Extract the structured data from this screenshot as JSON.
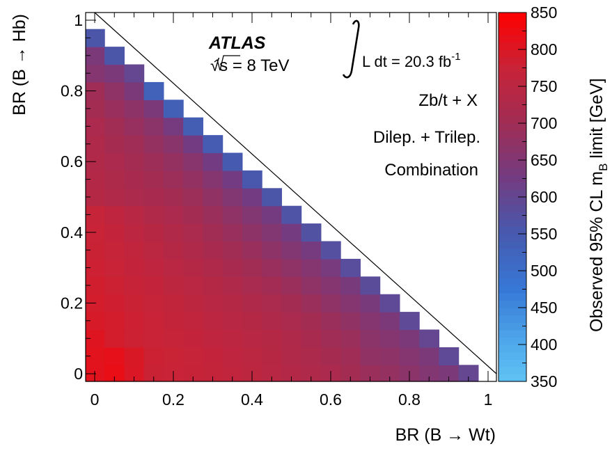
{
  "chart_data": {
    "type": "heatmap",
    "x": {
      "label": "BR (B → Wt)",
      "range": [
        0,
        1
      ],
      "ticks": [
        "0",
        "0.2",
        "0.4",
        "0.6",
        "0.8",
        "1"
      ],
      "tick_values": [
        0,
        0.2,
        0.4,
        0.6,
        0.8,
        1
      ]
    },
    "y": {
      "label": "BR (B → Hb)",
      "range": [
        0,
        1
      ],
      "ticks": [
        "0",
        "0.2",
        "0.4",
        "0.6",
        "0.8",
        "1"
      ],
      "tick_values": [
        0,
        0.2,
        0.4,
        0.6,
        0.8,
        1
      ]
    },
    "z": {
      "label": "Observed 95% CL m_B limit [GeV]",
      "label_main": "Observed 95% CL m",
      "label_sub": "B",
      "label_tail": " limit [GeV]",
      "range": [
        350,
        850
      ],
      "ticks": [
        "350",
        "400",
        "450",
        "500",
        "550",
        "600",
        "650",
        "700",
        "750",
        "800",
        "850"
      ],
      "tick_values": [
        350,
        400,
        450,
        500,
        550,
        600,
        650,
        700,
        750,
        800,
        850
      ]
    },
    "grid_step": 0.05,
    "constraint": "BR(Wt) + BR(Hb) ≤ 1",
    "cells": [
      [
        0,
        0,
        810
      ],
      [
        0.05,
        0,
        820
      ],
      [
        0.1,
        0,
        800
      ],
      [
        0.15,
        0,
        778
      ],
      [
        0.2,
        0,
        775
      ],
      [
        0.25,
        0,
        772
      ],
      [
        0.3,
        0,
        768
      ],
      [
        0.35,
        0,
        760
      ],
      [
        0.4,
        0,
        755
      ],
      [
        0.45,
        0,
        745
      ],
      [
        0.5,
        0,
        735
      ],
      [
        0.55,
        0,
        728
      ],
      [
        0.6,
        0,
        720
      ],
      [
        0.65,
        0,
        705
      ],
      [
        0.7,
        0,
        690
      ],
      [
        0.75,
        0,
        680
      ],
      [
        0.8,
        0,
        665
      ],
      [
        0.85,
        0,
        650
      ],
      [
        0.9,
        0,
        640
      ],
      [
        0.95,
        0,
        600
      ],
      [
        0,
        0.05,
        810
      ],
      [
        0.05,
        0.05,
        815
      ],
      [
        0.1,
        0.05,
        798
      ],
      [
        0.15,
        0.05,
        780
      ],
      [
        0.2,
        0.05,
        776
      ],
      [
        0.25,
        0.05,
        770
      ],
      [
        0.3,
        0.05,
        765
      ],
      [
        0.35,
        0.05,
        758
      ],
      [
        0.4,
        0.05,
        750
      ],
      [
        0.45,
        0.05,
        742
      ],
      [
        0.5,
        0.05,
        732
      ],
      [
        0.55,
        0.05,
        722
      ],
      [
        0.6,
        0.05,
        712
      ],
      [
        0.65,
        0.05,
        698
      ],
      [
        0.7,
        0.05,
        675
      ],
      [
        0.75,
        0.05,
        670
      ],
      [
        0.8,
        0.05,
        655
      ],
      [
        0.85,
        0.05,
        640
      ],
      [
        0.9,
        0.05,
        590
      ],
      [
        0,
        0.1,
        805
      ],
      [
        0.05,
        0.1,
        790
      ],
      [
        0.1,
        0.1,
        780
      ],
      [
        0.15,
        0.1,
        775
      ],
      [
        0.2,
        0.1,
        770
      ],
      [
        0.25,
        0.1,
        765
      ],
      [
        0.3,
        0.1,
        758
      ],
      [
        0.35,
        0.1,
        752
      ],
      [
        0.4,
        0.1,
        745
      ],
      [
        0.45,
        0.1,
        738
      ],
      [
        0.5,
        0.1,
        728
      ],
      [
        0.55,
        0.1,
        715
      ],
      [
        0.6,
        0.1,
        700
      ],
      [
        0.65,
        0.1,
        690
      ],
      [
        0.7,
        0.1,
        665
      ],
      [
        0.75,
        0.1,
        655
      ],
      [
        0.8,
        0.1,
        640
      ],
      [
        0.85,
        0.1,
        600
      ],
      [
        0,
        0.15,
        795
      ],
      [
        0.05,
        0.15,
        790
      ],
      [
        0.1,
        0.15,
        782
      ],
      [
        0.15,
        0.15,
        775
      ],
      [
        0.2,
        0.15,
        768
      ],
      [
        0.25,
        0.15,
        760
      ],
      [
        0.3,
        0.15,
        752
      ],
      [
        0.35,
        0.15,
        745
      ],
      [
        0.4,
        0.15,
        738
      ],
      [
        0.45,
        0.15,
        728
      ],
      [
        0.5,
        0.15,
        718
      ],
      [
        0.55,
        0.15,
        705
      ],
      [
        0.6,
        0.15,
        690
      ],
      [
        0.65,
        0.15,
        675
      ],
      [
        0.7,
        0.15,
        655
      ],
      [
        0.75,
        0.15,
        640
      ],
      [
        0.8,
        0.15,
        590
      ],
      [
        0,
        0.2,
        790
      ],
      [
        0.05,
        0.2,
        785
      ],
      [
        0.1,
        0.2,
        778
      ],
      [
        0.15,
        0.2,
        770
      ],
      [
        0.2,
        0.2,
        762
      ],
      [
        0.25,
        0.2,
        755
      ],
      [
        0.3,
        0.2,
        745
      ],
      [
        0.35,
        0.2,
        738
      ],
      [
        0.4,
        0.2,
        728
      ],
      [
        0.45,
        0.2,
        718
      ],
      [
        0.5,
        0.2,
        705
      ],
      [
        0.55,
        0.2,
        690
      ],
      [
        0.6,
        0.2,
        672
      ],
      [
        0.65,
        0.2,
        655
      ],
      [
        0.7,
        0.2,
        635
      ],
      [
        0.75,
        0.2,
        590
      ],
      [
        0,
        0.25,
        786
      ],
      [
        0.05,
        0.25,
        780
      ],
      [
        0.1,
        0.25,
        772
      ],
      [
        0.15,
        0.25,
        765
      ],
      [
        0.2,
        0.25,
        755
      ],
      [
        0.25,
        0.25,
        748
      ],
      [
        0.3,
        0.25,
        738
      ],
      [
        0.35,
        0.25,
        728
      ],
      [
        0.4,
        0.25,
        716
      ],
      [
        0.45,
        0.25,
        704
      ],
      [
        0.5,
        0.25,
        690
      ],
      [
        0.55,
        0.25,
        672
      ],
      [
        0.6,
        0.25,
        655
      ],
      [
        0.65,
        0.25,
        635
      ],
      [
        0.7,
        0.25,
        585
      ],
      [
        0,
        0.3,
        782
      ],
      [
        0.05,
        0.3,
        775
      ],
      [
        0.1,
        0.3,
        765
      ],
      [
        0.15,
        0.3,
        758
      ],
      [
        0.2,
        0.3,
        748
      ],
      [
        0.25,
        0.3,
        738
      ],
      [
        0.3,
        0.3,
        728
      ],
      [
        0.35,
        0.3,
        715
      ],
      [
        0.4,
        0.3,
        702
      ],
      [
        0.45,
        0.3,
        688
      ],
      [
        0.5,
        0.3,
        672
      ],
      [
        0.55,
        0.3,
        655
      ],
      [
        0.6,
        0.3,
        632
      ],
      [
        0.65,
        0.3,
        580
      ],
      [
        0,
        0.35,
        778
      ],
      [
        0.05,
        0.35,
        770
      ],
      [
        0.1,
        0.35,
        760
      ],
      [
        0.15,
        0.35,
        750
      ],
      [
        0.2,
        0.35,
        740
      ],
      [
        0.25,
        0.35,
        728
      ],
      [
        0.3,
        0.35,
        715
      ],
      [
        0.35,
        0.35,
        702
      ],
      [
        0.4,
        0.35,
        688
      ],
      [
        0.45,
        0.35,
        670
      ],
      [
        0.5,
        0.35,
        652
      ],
      [
        0.55,
        0.35,
        630
      ],
      [
        0.6,
        0.35,
        575
      ],
      [
        0,
        0.4,
        775
      ],
      [
        0.05,
        0.4,
        765
      ],
      [
        0.1,
        0.4,
        752
      ],
      [
        0.15,
        0.4,
        742
      ],
      [
        0.2,
        0.4,
        730
      ],
      [
        0.25,
        0.4,
        718
      ],
      [
        0.3,
        0.4,
        703
      ],
      [
        0.35,
        0.4,
        688
      ],
      [
        0.4,
        0.4,
        670
      ],
      [
        0.45,
        0.4,
        650
      ],
      [
        0.5,
        0.4,
        628
      ],
      [
        0.55,
        0.4,
        570
      ],
      [
        0,
        0.45,
        770
      ],
      [
        0.05,
        0.45,
        758
      ],
      [
        0.1,
        0.45,
        745
      ],
      [
        0.15,
        0.45,
        732
      ],
      [
        0.2,
        0.45,
        720
      ],
      [
        0.25,
        0.45,
        705
      ],
      [
        0.3,
        0.45,
        690
      ],
      [
        0.35,
        0.45,
        672
      ],
      [
        0.4,
        0.45,
        650
      ],
      [
        0.45,
        0.45,
        628
      ],
      [
        0.5,
        0.45,
        565
      ],
      [
        0,
        0.5,
        740
      ],
      [
        0.05,
        0.5,
        730
      ],
      [
        0.1,
        0.5,
        722
      ],
      [
        0.15,
        0.5,
        715
      ],
      [
        0.2,
        0.5,
        705
      ],
      [
        0.25,
        0.5,
        692
      ],
      [
        0.3,
        0.5,
        675
      ],
      [
        0.35,
        0.5,
        652
      ],
      [
        0.4,
        0.5,
        625
      ],
      [
        0.45,
        0.5,
        560
      ],
      [
        0,
        0.55,
        735
      ],
      [
        0.05,
        0.55,
        725
      ],
      [
        0.1,
        0.55,
        715
      ],
      [
        0.15,
        0.55,
        705
      ],
      [
        0.2,
        0.55,
        692
      ],
      [
        0.25,
        0.55,
        678
      ],
      [
        0.3,
        0.55,
        655
      ],
      [
        0.35,
        0.55,
        625
      ],
      [
        0.4,
        0.55,
        555
      ],
      [
        0,
        0.6,
        730
      ],
      [
        0.05,
        0.6,
        720
      ],
      [
        0.1,
        0.6,
        708
      ],
      [
        0.15,
        0.6,
        695
      ],
      [
        0.2,
        0.6,
        680
      ],
      [
        0.25,
        0.6,
        660
      ],
      [
        0.3,
        0.6,
        625
      ],
      [
        0.35,
        0.6,
        550
      ],
      [
        0,
        0.65,
        728
      ],
      [
        0.05,
        0.65,
        712
      ],
      [
        0.1,
        0.65,
        698
      ],
      [
        0.15,
        0.65,
        682
      ],
      [
        0.2,
        0.65,
        662
      ],
      [
        0.25,
        0.65,
        625
      ],
      [
        0.3,
        0.65,
        545
      ],
      [
        0,
        0.7,
        720
      ],
      [
        0.05,
        0.7,
        702
      ],
      [
        0.1,
        0.7,
        685
      ],
      [
        0.15,
        0.7,
        665
      ],
      [
        0.2,
        0.7,
        630
      ],
      [
        0.25,
        0.7,
        540
      ],
      [
        0,
        0.75,
        705
      ],
      [
        0.05,
        0.75,
        688
      ],
      [
        0.1,
        0.75,
        668
      ],
      [
        0.15,
        0.75,
        638
      ],
      [
        0.2,
        0.75,
        535
      ],
      [
        0,
        0.8,
        700
      ],
      [
        0.05,
        0.8,
        672
      ],
      [
        0.1,
        0.8,
        640
      ],
      [
        0.15,
        0.8,
        530
      ],
      [
        0,
        0.85,
        655
      ],
      [
        0.05,
        0.85,
        640
      ],
      [
        0.1,
        0.85,
        600
      ],
      [
        0,
        0.9,
        640
      ],
      [
        0.05,
        0.9,
        560
      ],
      [
        0,
        0.95,
        560
      ]
    ],
    "annotations": {
      "experiment": "ATLAS",
      "energy": "√s = 8 TeV",
      "luminosity": "L dt = 20.3 fb",
      "luminosity_exp": "-1",
      "channel": "Zb/t + X",
      "selection": "Dilep. + Trilep.",
      "combination": "Combination"
    }
  }
}
